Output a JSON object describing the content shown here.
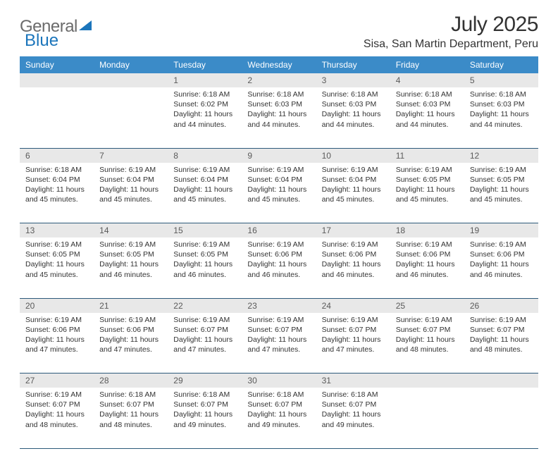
{
  "header": {
    "logo_part1": "General",
    "logo_part2": "Blue",
    "month_title": "July 2025",
    "location": "Sisa, San Martin Department, Peru"
  },
  "weekdays": [
    "Sunday",
    "Monday",
    "Tuesday",
    "Wednesday",
    "Thursday",
    "Friday",
    "Saturday"
  ],
  "colors": {
    "header_bg": "#3b8bc8",
    "header_text": "#ffffff",
    "daynum_bg": "#e8e8e8",
    "daynum_text": "#5a5a5a",
    "row_border": "#2d5a7a",
    "body_text": "#333333",
    "logo_gray": "#6b6b6b",
    "logo_blue": "#1b75bb"
  },
  "weeks": [
    {
      "nums": [
        "",
        "",
        "1",
        "2",
        "3",
        "4",
        "5"
      ],
      "cells": [
        null,
        null,
        {
          "sunrise": "6:18 AM",
          "sunset": "6:02 PM",
          "daylight": "11 hours and 44 minutes."
        },
        {
          "sunrise": "6:18 AM",
          "sunset": "6:03 PM",
          "daylight": "11 hours and 44 minutes."
        },
        {
          "sunrise": "6:18 AM",
          "sunset": "6:03 PM",
          "daylight": "11 hours and 44 minutes."
        },
        {
          "sunrise": "6:18 AM",
          "sunset": "6:03 PM",
          "daylight": "11 hours and 44 minutes."
        },
        {
          "sunrise": "6:18 AM",
          "sunset": "6:03 PM",
          "daylight": "11 hours and 44 minutes."
        }
      ]
    },
    {
      "nums": [
        "6",
        "7",
        "8",
        "9",
        "10",
        "11",
        "12"
      ],
      "cells": [
        {
          "sunrise": "6:18 AM",
          "sunset": "6:04 PM",
          "daylight": "11 hours and 45 minutes."
        },
        {
          "sunrise": "6:19 AM",
          "sunset": "6:04 PM",
          "daylight": "11 hours and 45 minutes."
        },
        {
          "sunrise": "6:19 AM",
          "sunset": "6:04 PM",
          "daylight": "11 hours and 45 minutes."
        },
        {
          "sunrise": "6:19 AM",
          "sunset": "6:04 PM",
          "daylight": "11 hours and 45 minutes."
        },
        {
          "sunrise": "6:19 AM",
          "sunset": "6:04 PM",
          "daylight": "11 hours and 45 minutes."
        },
        {
          "sunrise": "6:19 AM",
          "sunset": "6:05 PM",
          "daylight": "11 hours and 45 minutes."
        },
        {
          "sunrise": "6:19 AM",
          "sunset": "6:05 PM",
          "daylight": "11 hours and 45 minutes."
        }
      ]
    },
    {
      "nums": [
        "13",
        "14",
        "15",
        "16",
        "17",
        "18",
        "19"
      ],
      "cells": [
        {
          "sunrise": "6:19 AM",
          "sunset": "6:05 PM",
          "daylight": "11 hours and 45 minutes."
        },
        {
          "sunrise": "6:19 AM",
          "sunset": "6:05 PM",
          "daylight": "11 hours and 46 minutes."
        },
        {
          "sunrise": "6:19 AM",
          "sunset": "6:05 PM",
          "daylight": "11 hours and 46 minutes."
        },
        {
          "sunrise": "6:19 AM",
          "sunset": "6:06 PM",
          "daylight": "11 hours and 46 minutes."
        },
        {
          "sunrise": "6:19 AM",
          "sunset": "6:06 PM",
          "daylight": "11 hours and 46 minutes."
        },
        {
          "sunrise": "6:19 AM",
          "sunset": "6:06 PM",
          "daylight": "11 hours and 46 minutes."
        },
        {
          "sunrise": "6:19 AM",
          "sunset": "6:06 PM",
          "daylight": "11 hours and 46 minutes."
        }
      ]
    },
    {
      "nums": [
        "20",
        "21",
        "22",
        "23",
        "24",
        "25",
        "26"
      ],
      "cells": [
        {
          "sunrise": "6:19 AM",
          "sunset": "6:06 PM",
          "daylight": "11 hours and 47 minutes."
        },
        {
          "sunrise": "6:19 AM",
          "sunset": "6:06 PM",
          "daylight": "11 hours and 47 minutes."
        },
        {
          "sunrise": "6:19 AM",
          "sunset": "6:07 PM",
          "daylight": "11 hours and 47 minutes."
        },
        {
          "sunrise": "6:19 AM",
          "sunset": "6:07 PM",
          "daylight": "11 hours and 47 minutes."
        },
        {
          "sunrise": "6:19 AM",
          "sunset": "6:07 PM",
          "daylight": "11 hours and 47 minutes."
        },
        {
          "sunrise": "6:19 AM",
          "sunset": "6:07 PM",
          "daylight": "11 hours and 48 minutes."
        },
        {
          "sunrise": "6:19 AM",
          "sunset": "6:07 PM",
          "daylight": "11 hours and 48 minutes."
        }
      ]
    },
    {
      "nums": [
        "27",
        "28",
        "29",
        "30",
        "31",
        "",
        ""
      ],
      "cells": [
        {
          "sunrise": "6:19 AM",
          "sunset": "6:07 PM",
          "daylight": "11 hours and 48 minutes."
        },
        {
          "sunrise": "6:18 AM",
          "sunset": "6:07 PM",
          "daylight": "11 hours and 48 minutes."
        },
        {
          "sunrise": "6:18 AM",
          "sunset": "6:07 PM",
          "daylight": "11 hours and 49 minutes."
        },
        {
          "sunrise": "6:18 AM",
          "sunset": "6:07 PM",
          "daylight": "11 hours and 49 minutes."
        },
        {
          "sunrise": "6:18 AM",
          "sunset": "6:07 PM",
          "daylight": "11 hours and 49 minutes."
        },
        null,
        null
      ]
    }
  ],
  "labels": {
    "sunrise": "Sunrise: ",
    "sunset": "Sunset: ",
    "daylight": "Daylight: "
  }
}
